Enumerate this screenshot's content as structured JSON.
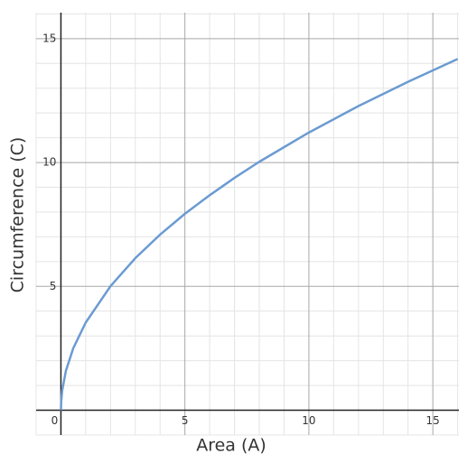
{
  "chart_data": {
    "type": "line",
    "x_label": "Area (A)",
    "y_label": "Circumference (C)",
    "x": [
      0,
      0.01,
      0.05,
      0.2,
      0.5,
      1,
      2,
      3,
      4,
      5,
      6,
      7,
      8,
      10,
      12,
      14,
      16
    ],
    "series": [
      {
        "color": "#6b9bd2",
        "values": [
          0,
          0.35,
          0.79,
          1.59,
          2.51,
          3.54,
          5.01,
          6.14,
          7.09,
          7.93,
          8.68,
          9.38,
          10.03,
          11.21,
          12.28,
          13.26,
          14.18
        ]
      }
    ],
    "xlim": [
      -1,
      16.05
    ],
    "ylim": [
      -1,
      16.05
    ],
    "xticks": [
      0,
      5,
      10,
      15
    ],
    "yticks": [
      5,
      10,
      15
    ],
    "xminor": [
      -1,
      1,
      2,
      3,
      4,
      6,
      7,
      8,
      9,
      11,
      12,
      13,
      14,
      16
    ],
    "yminor": [
      -1,
      0,
      1,
      2,
      3,
      4,
      6,
      7,
      8,
      9,
      11,
      12,
      13,
      14,
      16
    ],
    "grid": true
  }
}
